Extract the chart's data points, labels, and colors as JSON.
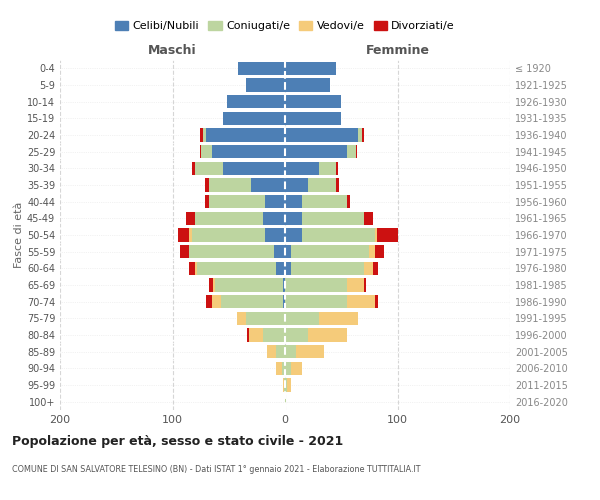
{
  "age_groups": [
    "0-4",
    "5-9",
    "10-14",
    "15-19",
    "20-24",
    "25-29",
    "30-34",
    "35-39",
    "40-44",
    "45-49",
    "50-54",
    "55-59",
    "60-64",
    "65-69",
    "70-74",
    "75-79",
    "80-84",
    "85-89",
    "90-94",
    "95-99",
    "100+"
  ],
  "birth_years": [
    "2016-2020",
    "2011-2015",
    "2006-2010",
    "2001-2005",
    "1996-2000",
    "1991-1995",
    "1986-1990",
    "1981-1985",
    "1976-1980",
    "1971-1975",
    "1966-1970",
    "1961-1965",
    "1956-1960",
    "1951-1955",
    "1946-1950",
    "1941-1945",
    "1936-1940",
    "1931-1935",
    "1926-1930",
    "1921-1925",
    "≤ 1920"
  ],
  "colors": {
    "celibi": "#4d7fb5",
    "coniugati": "#bdd5a0",
    "vedovi": "#f5cb7a",
    "divorziati": "#cc1111"
  },
  "males": {
    "celibi": [
      42,
      35,
      52,
      55,
      70,
      65,
      55,
      30,
      18,
      20,
      18,
      10,
      8,
      2,
      2,
      0,
      0,
      0,
      0,
      0,
      0
    ],
    "coniugati": [
      0,
      0,
      0,
      0,
      3,
      10,
      25,
      38,
      50,
      60,
      65,
      75,
      70,
      60,
      55,
      35,
      20,
      8,
      3,
      1,
      0
    ],
    "vedovi": [
      0,
      0,
      0,
      0,
      0,
      0,
      0,
      0,
      0,
      0,
      2,
      0,
      2,
      2,
      8,
      8,
      12,
      8,
      5,
      1,
      0
    ],
    "divorziati": [
      0,
      0,
      0,
      0,
      3,
      1,
      3,
      3,
      3,
      8,
      10,
      8,
      5,
      4,
      5,
      0,
      2,
      0,
      0,
      0,
      0
    ]
  },
  "females": {
    "nubili": [
      45,
      40,
      50,
      50,
      65,
      55,
      30,
      20,
      15,
      15,
      15,
      5,
      5,
      0,
      0,
      0,
      0,
      0,
      0,
      0,
      0
    ],
    "coniugati": [
      0,
      0,
      0,
      0,
      3,
      8,
      15,
      25,
      40,
      55,
      65,
      70,
      65,
      55,
      55,
      30,
      20,
      10,
      5,
      2,
      1
    ],
    "vedovi": [
      0,
      0,
      0,
      0,
      0,
      0,
      0,
      0,
      0,
      0,
      2,
      5,
      8,
      15,
      25,
      35,
      35,
      25,
      10,
      3,
      0
    ],
    "divorziati": [
      0,
      0,
      0,
      0,
      2,
      1,
      2,
      3,
      3,
      8,
      18,
      8,
      5,
      2,
      3,
      0,
      0,
      0,
      0,
      0,
      0
    ]
  },
  "title": "Popolazione per età, sesso e stato civile - 2021",
  "subtitle": "COMUNE DI SAN SALVATORE TELESINO (BN) - Dati ISTAT 1° gennaio 2021 - Elaborazione TUTTITALIA.IT",
  "ylabel_left": "Fasce di età",
  "xlabel_males": "Maschi",
  "xlabel_females": "Femmine",
  "xlim": 200,
  "legend_labels": [
    "Celibi/Nubili",
    "Coniugati/e",
    "Vedovi/e",
    "Divorziati/e"
  ],
  "background_color": "#ffffff"
}
